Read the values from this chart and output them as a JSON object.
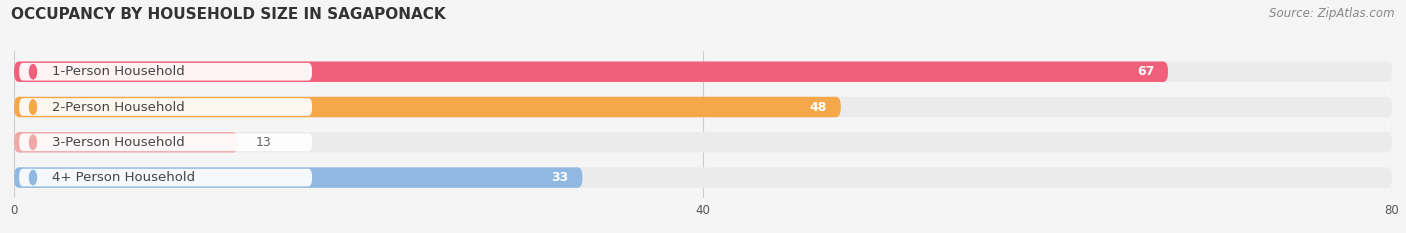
{
  "title": "OCCUPANCY BY HOUSEHOLD SIZE IN SAGAPONACK",
  "source": "Source: ZipAtlas.com",
  "categories": [
    "1-Person Household",
    "2-Person Household",
    "3-Person Household",
    "4+ Person Household"
  ],
  "values": [
    67,
    48,
    13,
    33
  ],
  "bar_colors": [
    "#f0607a",
    "#f5a84a",
    "#f0a8a8",
    "#90b8e0"
  ],
  "bar_bg_colors": [
    "#ebebeb",
    "#ebebeb",
    "#ebebeb",
    "#ebebeb"
  ],
  "label_bg_colors": [
    "#f0607a",
    "#f5a84a",
    "#f0a8a8",
    "#90b8e0"
  ],
  "xlim": [
    0,
    80
  ],
  "xticks": [
    0,
    40,
    80
  ],
  "label_fontsize": 9.5,
  "value_fontsize": 9,
  "title_fontsize": 11,
  "source_fontsize": 8.5,
  "bar_height": 0.58,
  "background_color": "#f5f5f5"
}
